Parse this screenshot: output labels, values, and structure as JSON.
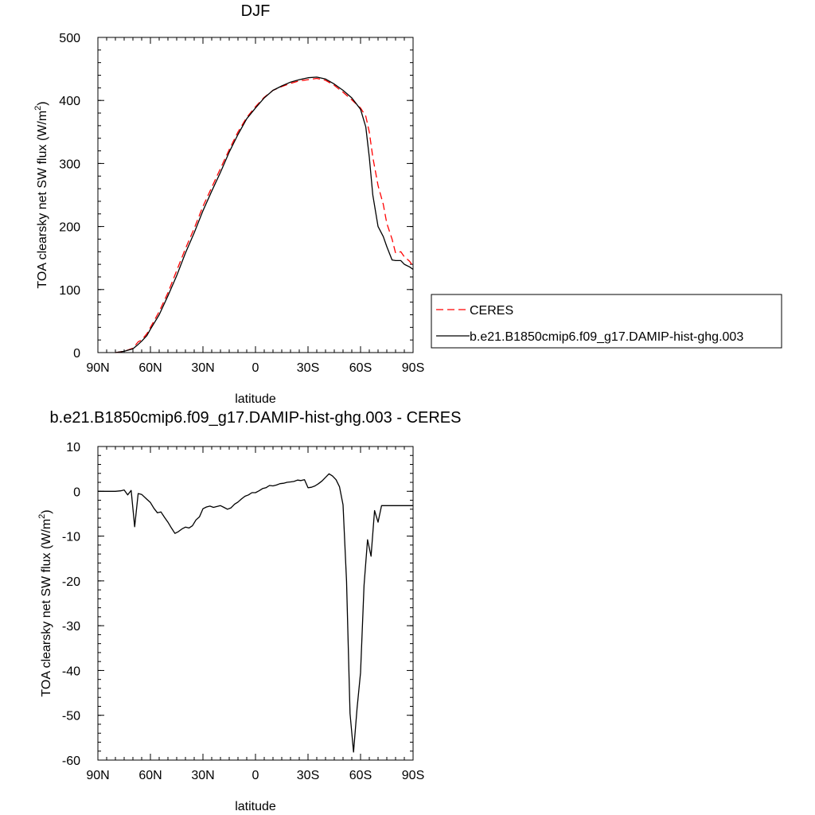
{
  "chart_data": [
    {
      "type": "line",
      "title": "DJF",
      "xlabel": "latitude",
      "ylabel": "TOA clearsky net SW flux (W/m",
      "ylabel_sup": "2",
      "ylabel_tail": ")",
      "xlim": [
        -90,
        90
      ],
      "ylim": [
        0,
        500
      ],
      "x_ticks": [
        -90,
        -60,
        -30,
        0,
        30,
        60,
        90
      ],
      "x_tick_labels": [
        "90N",
        "60N",
        "30N",
        "0",
        "30S",
        "60S",
        "90S"
      ],
      "y_ticks": [
        0,
        100,
        200,
        300,
        400,
        500
      ],
      "y_tick_labels": [
        "0",
        "100",
        "200",
        "300",
        "400",
        "500"
      ],
      "legend_position": "right",
      "series": [
        {
          "name": "CERES",
          "color": "#ff0000",
          "dash": "dashed",
          "x": [
            -80,
            -75,
            -70,
            -67,
            -65,
            -62,
            -60,
            -55,
            -50,
            -45,
            -40,
            -35,
            -30,
            -25,
            -20,
            -15,
            -10,
            -5,
            0,
            5,
            10,
            15,
            20,
            25,
            30,
            35,
            40,
            45,
            50,
            55,
            60,
            63,
            65,
            67,
            70,
            73,
            75,
            78,
            80,
            83,
            85,
            88,
            90
          ],
          "y": [
            0,
            2,
            7,
            17,
            20,
            30,
            40,
            65,
            95,
            130,
            165,
            197,
            232,
            262,
            292,
            322,
            350,
            373,
            390,
            405,
            416,
            422,
            427,
            431,
            433,
            435,
            432,
            424,
            413,
            401,
            388,
            375,
            350,
            310,
            265,
            235,
            205,
            180,
            158,
            160,
            152,
            145,
            137
          ]
        },
        {
          "name": "b.e21.B1850cmip6.f09_g17.DAMIP-hist-ghg.003",
          "color": "#000000",
          "dash": "solid",
          "x": [
            -80,
            -75,
            -70,
            -67,
            -65,
            -62,
            -60,
            -55,
            -50,
            -45,
            -40,
            -35,
            -30,
            -25,
            -20,
            -15,
            -10,
            -5,
            0,
            5,
            10,
            15,
            20,
            25,
            30,
            35,
            40,
            45,
            50,
            55,
            60,
            63,
            65,
            67,
            70,
            73,
            75,
            78,
            80,
            83,
            85,
            88,
            90
          ],
          "y": [
            0,
            2,
            6,
            13,
            18,
            27,
            37,
            60,
            90,
            122,
            158,
            190,
            225,
            256,
            286,
            318,
            346,
            371,
            388,
            404,
            416,
            423,
            429,
            433,
            436,
            437,
            434,
            426,
            416,
            404,
            386,
            358,
            310,
            250,
            200,
            184,
            168,
            147,
            146,
            146,
            140,
            136,
            132
          ]
        }
      ]
    },
    {
      "type": "line",
      "title": "b.e21.B1850cmip6.f09_g17.DAMIP-hist-ghg.003 - CERES",
      "xlabel": "latitude",
      "ylabel": "TOA clearsky net SW flux (W/m",
      "ylabel_sup": "2",
      "ylabel_tail": ")",
      "xlim": [
        -90,
        90
      ],
      "ylim": [
        -60,
        10
      ],
      "x_ticks": [
        -90,
        -60,
        -30,
        0,
        30,
        60,
        90
      ],
      "x_tick_labels": [
        "90N",
        "60N",
        "30N",
        "0",
        "30S",
        "60S",
        "90S"
      ],
      "y_ticks": [
        -60,
        -50,
        -40,
        -30,
        -20,
        -10,
        0,
        10
      ],
      "y_tick_labels": [
        "-60",
        "-50",
        "-40",
        "-30",
        "-20",
        "-10",
        "0",
        "10"
      ],
      "series": [
        {
          "color": "#000000",
          "dash": "solid",
          "x": [
            -90,
            -85,
            -80,
            -77,
            -75,
            -73,
            -71,
            -69,
            -67,
            -65,
            -62,
            -60,
            -58,
            -56,
            -54,
            -52,
            -50,
            -48,
            -46,
            -44,
            -42,
            -40,
            -38,
            -36,
            -34,
            -32,
            -30,
            -28,
            -26,
            -24,
            -22,
            -20,
            -18,
            -16,
            -14,
            -12,
            -10,
            -8,
            -6,
            -4,
            -2,
            0,
            2,
            4,
            6,
            8,
            10,
            12,
            14,
            16,
            18,
            20,
            22,
            24,
            26,
            28,
            30,
            32,
            34,
            36,
            38,
            40,
            42,
            44,
            46,
            48,
            50,
            52,
            54,
            56,
            58,
            60,
            62,
            64,
            66,
            68,
            70,
            72,
            74,
            76,
            78,
            80,
            82,
            84,
            86,
            88,
            90
          ],
          "y": [
            0,
            0,
            0,
            0.1,
            0.3,
            -0.8,
            0.2,
            -7.9,
            -0.5,
            -0.7,
            -1.8,
            -2.5,
            -3.8,
            -4.8,
            -4.6,
            -5.8,
            -6.9,
            -8.2,
            -9.4,
            -9.0,
            -8.4,
            -8.0,
            -8.2,
            -7.7,
            -6.4,
            -5.7,
            -3.9,
            -3.5,
            -3.3,
            -3.6,
            -3.4,
            -3.2,
            -3.6,
            -4.0,
            -3.7,
            -2.9,
            -2.4,
            -1.7,
            -1.1,
            -0.8,
            -0.3,
            -0.3,
            0.1,
            0.6,
            0.8,
            1.3,
            1.2,
            1.4,
            1.7,
            1.8,
            2.0,
            2.1,
            2.2,
            2.5,
            2.4,
            2.6,
            0.8,
            0.9,
            1.2,
            1.7,
            2.3,
            3.1,
            3.9,
            3.4,
            2.6,
            1.0,
            -3.0,
            -20.0,
            -49.6,
            -58.2,
            -48.5,
            -40.5,
            -21.0,
            -10.8,
            -14.5,
            -4.3,
            -6.9,
            -3.2,
            -3.2,
            -3.2,
            -3.2,
            -3.2,
            -3.2,
            -3.2,
            -3.2,
            -3.2,
            -3.2
          ]
        }
      ]
    }
  ]
}
